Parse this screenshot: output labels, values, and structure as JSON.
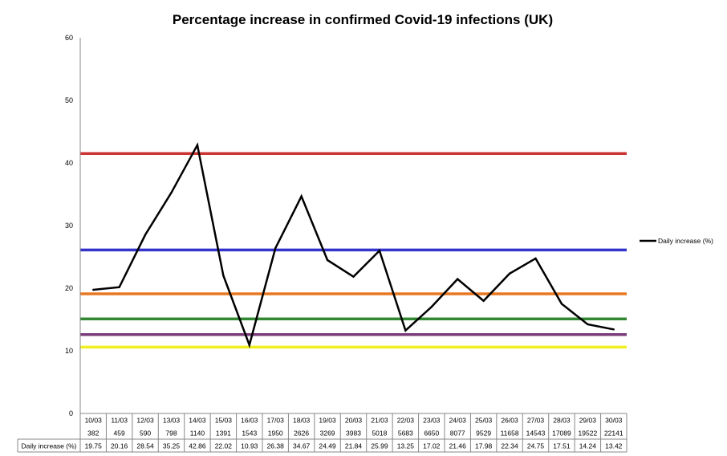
{
  "chart_data": {
    "type": "line",
    "title": "Percentage increase in confirmed Covid-19 infections (UK)",
    "ylim": [
      0,
      60
    ],
    "y_ticks": [
      0,
      10,
      20,
      30,
      40,
      50,
      60
    ],
    "grid": false,
    "legend_position": "right",
    "categories": [
      "10/03",
      "11/03",
      "12/03",
      "13/03",
      "14/03",
      "15/03",
      "16/03",
      "17/03",
      "18/03",
      "19/03",
      "20/03",
      "21/03",
      "22/03",
      "23/03",
      "24/03",
      "25/03",
      "26/03",
      "27/03",
      "28/03",
      "29/03",
      "30/03"
    ],
    "cases": [
      "382",
      "459",
      "590",
      "798",
      "1140",
      "1391",
      "1543",
      "1950",
      "2626",
      "3269",
      "3983",
      "5018",
      "5683",
      "6650",
      "8077",
      "9529",
      "11658",
      "14543",
      "17089",
      "19522",
      "22141"
    ],
    "series": [
      {
        "name": "Daily increase (%)",
        "color": "#000000",
        "values": [
          19.75,
          20.16,
          28.54,
          35.25,
          42.86,
          22.02,
          10.93,
          26.38,
          34.67,
          24.49,
          21.84,
          25.99,
          13.25,
          17.02,
          21.46,
          17.98,
          22.34,
          24.75,
          17.51,
          14.24,
          13.42
        ],
        "labels": [
          "19.75",
          "20.16",
          "28.54",
          "35.25",
          "42.86",
          "22.02",
          "10.93",
          "26.38",
          "34.67",
          "24.49",
          "21.84",
          "25.99",
          "13.25",
          "17.02",
          "21.46",
          "17.98",
          "22.34",
          "24.75",
          "17.51",
          "14.24",
          "13.42"
        ]
      }
    ],
    "reference_lines": [
      {
        "value": 41.5,
        "color": "#cc3333"
      },
      {
        "value": 26.1,
        "color": "#3333cc"
      },
      {
        "value": 19.1,
        "color": "#e87722"
      },
      {
        "value": 15.1,
        "color": "#338833"
      },
      {
        "value": 12.6,
        "color": "#7a3d7a"
      },
      {
        "value": 10.6,
        "color": "#f0f020"
      }
    ],
    "table_row_label": "Daily increase (%)"
  }
}
